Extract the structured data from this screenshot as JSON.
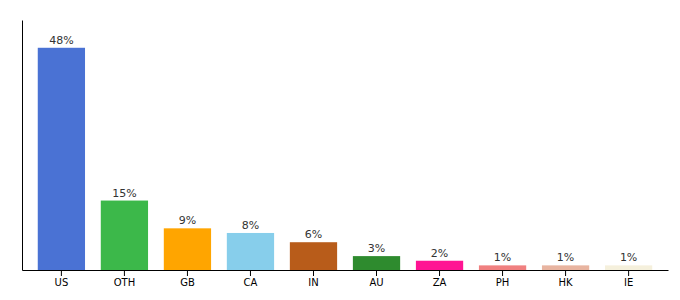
{
  "chart_data": {
    "type": "bar",
    "categories": [
      "US",
      "OTH",
      "GB",
      "CA",
      "IN",
      "AU",
      "ZA",
      "PH",
      "HK",
      "IE"
    ],
    "values": [
      48,
      15,
      9,
      8,
      6,
      3,
      2,
      1,
      1,
      1
    ],
    "value_labels": [
      "48%",
      "15%",
      "9%",
      "8%",
      "6%",
      "3%",
      "2%",
      "1%",
      "1%",
      "1%"
    ],
    "colors": [
      "#4A72D4",
      "#3CB84A",
      "#FFA500",
      "#87CEEB",
      "#B85C1A",
      "#2E8B2E",
      "#FF1493",
      "#F08080",
      "#E8B4A0",
      "#F5F0DC"
    ],
    "ylim": [
      0,
      54
    ],
    "data_labels": true,
    "tick_labels": "x",
    "grid": false
  }
}
